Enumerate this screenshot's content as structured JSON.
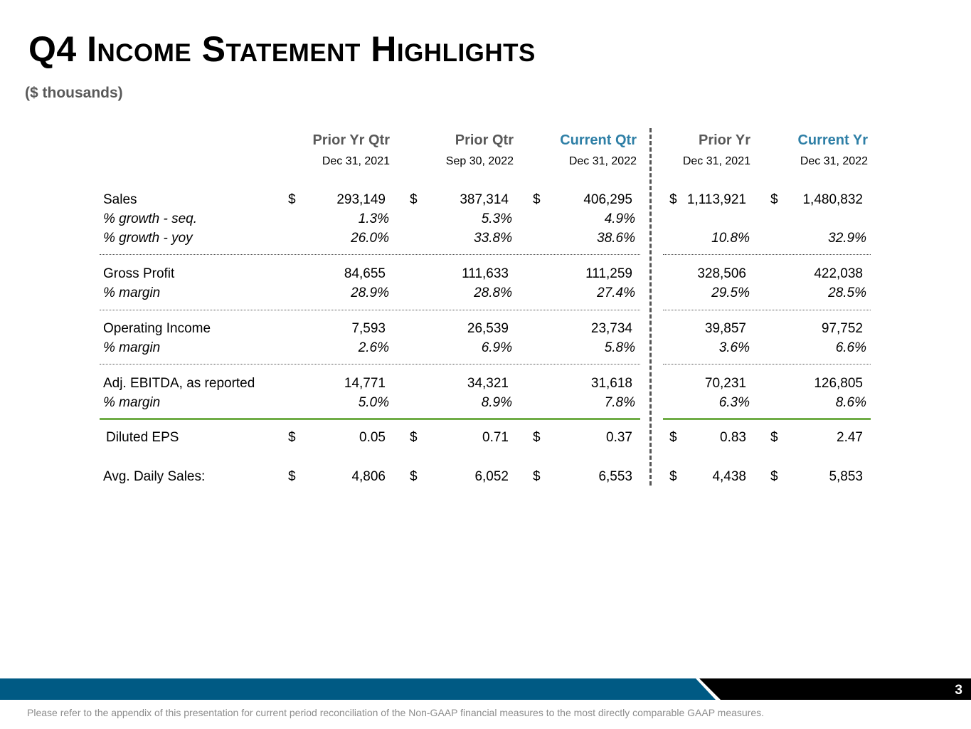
{
  "title": "Q4 Income Statement Highlights",
  "subtitle": "($ thousands)",
  "columns": [
    {
      "header": "Prior Yr Qtr",
      "date": "Dec 31, 2021",
      "current": false
    },
    {
      "header": "Prior Qtr",
      "date": "Sep 30, 2022",
      "current": false
    },
    {
      "header": "Current Qtr",
      "date": "Dec 31, 2022",
      "current": true
    },
    {
      "header": "Prior Yr",
      "date": "Dec 31, 2021",
      "current": false
    },
    {
      "header": "Current Yr",
      "date": "Dec 31, 2022",
      "current": true
    }
  ],
  "rows": [
    {
      "label": "Sales",
      "italic": false,
      "dollar": [
        "$",
        "$",
        "$",
        "$",
        "$"
      ],
      "values": [
        "293,149",
        "387,314",
        "406,295",
        "1,113,921",
        "1,480,832"
      ]
    },
    {
      "label": "% growth - seq.",
      "italic": true,
      "values": [
        "1.3%",
        "5.3%",
        "4.9%",
        "",
        ""
      ]
    },
    {
      "label": "% growth - yoy",
      "italic": true,
      "values": [
        "26.0%",
        "33.8%",
        "38.6%",
        "10.8%",
        "32.9%"
      ]
    },
    {
      "label": "Gross Profit",
      "italic": false,
      "values": [
        "84,655",
        "111,633",
        "111,259",
        "328,506",
        "422,038"
      ]
    },
    {
      "label": "% margin",
      "italic": true,
      "values": [
        "28.9%",
        "28.8%",
        "27.4%",
        "29.5%",
        "28.5%"
      ]
    },
    {
      "label": "Operating Income",
      "italic": false,
      "values": [
        "7,593",
        "26,539",
        "23,734",
        "39,857",
        "97,752"
      ]
    },
    {
      "label": "% margin",
      "italic": true,
      "values": [
        "2.6%",
        "6.9%",
        "5.8%",
        "3.6%",
        "6.6%"
      ]
    },
    {
      "label": "Adj. EBITDA, as reported",
      "italic": false,
      "values": [
        "14,771",
        "34,321",
        "31,618",
        "70,231",
        "126,805"
      ]
    },
    {
      "label": "% margin",
      "italic": true,
      "values": [
        "5.0%",
        "8.9%",
        "7.8%",
        "6.3%",
        "8.6%"
      ]
    },
    {
      "label": "Diluted EPS",
      "italic": false,
      "dollar": [
        "$",
        "$",
        "$",
        "$",
        "$"
      ],
      "values": [
        "0.05",
        "0.71",
        "0.37",
        "0.83",
        "2.47"
      ]
    },
    {
      "label": "Avg. Daily Sales:",
      "italic": false,
      "dollar": [
        "$",
        "$",
        "$",
        "$",
        "$"
      ],
      "values": [
        "4,806",
        "6,052",
        "6,553",
        "4,438",
        "5,853"
      ]
    }
  ],
  "page_number": "3",
  "footer": "Please refer to the appendix of this presentation for current period reconciliation of the Non-GAAP financial measures to the most directly comparable GAAP measures.",
  "colors": {
    "accent_blue": "#2e7fa6",
    "bar_blue": "#005a84",
    "green": "#70ad47"
  }
}
